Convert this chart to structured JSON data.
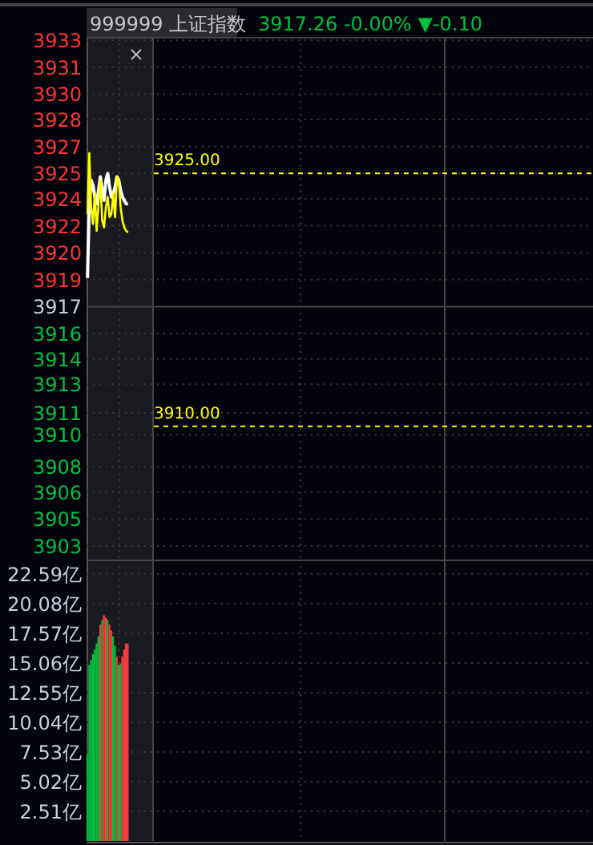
{
  "chart_data": [
    {
      "type": "line",
      "title": "999999 上证指数",
      "subtitle": "3917.26  -0.00% ▼-0.10",
      "categories": [
        null,
        null,
        null,
        null,
        null,
        null,
        null,
        null,
        null,
        null,
        null,
        null,
        null,
        null,
        null,
        null,
        null,
        null,
        null,
        null,
        null,
        null,
        null,
        null,
        null,
        null,
        null,
        null,
        null,
        null,
        null,
        null,
        null,
        null,
        null,
        null,
        null,
        null,
        null,
        null,
        null,
        null,
        null,
        null,
        null,
        null,
        null,
        null,
        null,
        null,
        null,
        null,
        null,
        null,
        null,
        null,
        null,
        null,
        null,
        null,
        null,
        null,
        null,
        null,
        null,
        null,
        null,
        null,
        null,
        null,
        null,
        null,
        null,
        null,
        null,
        null,
        null,
        null,
        null,
        null,
        null,
        null,
        null,
        null,
        null,
        null,
        null,
        null,
        null,
        null,
        null,
        null,
        null,
        null,
        null,
        null,
        null,
        null,
        null,
        null,
        null,
        null,
        null,
        null,
        null,
        null,
        null,
        null,
        null,
        null,
        null,
        null,
        null,
        null,
        null,
        null,
        null,
        null,
        null,
        null,
        null,
        null,
        null,
        null,
        null,
        null,
        null,
        null,
        null,
        null,
        null,
        null,
        null,
        null,
        null,
        null,
        null,
        null,
        null,
        null,
        null,
        null,
        null,
        null,
        null,
        null,
        null,
        null,
        null,
        null,
        null,
        null,
        null,
        null,
        null,
        null,
        null,
        null,
        null,
        null,
        null,
        null,
        null,
        null,
        null,
        null,
        null,
        null,
        null,
        null,
        null,
        null,
        null,
        null,
        null,
        null,
        null,
        null,
        null,
        null,
        null,
        null,
        null,
        null,
        null,
        null,
        null,
        null,
        null,
        null,
        null,
        null,
        null,
        null,
        null,
        null,
        null,
        null,
        null,
        null,
        null,
        null,
        null,
        null,
        null,
        null,
        null,
        null,
        null,
        null,
        null,
        null,
        null,
        null,
        null,
        null,
        null,
        null,
        null,
        null,
        null,
        null,
        null,
        null,
        null,
        null,
        null,
        null,
        null,
        null,
        null,
        null,
        null,
        null,
        null,
        null,
        null,
        null,
        null,
        null,
        null,
        null,
        null,
        null,
        null,
        null,
        null,
        null,
        null,
        null,
        null,
        null,
        null,
        null,
        null,
        null,
        null,
        null,
        null,
        null,
        null,
        null,
        null,
        null,
        null,
        null,
        null,
        null,
        null,
        null,
        null,
        null,
        null,
        null,
        null
      ],
      "series": [
        {
          "color": "#ffffff",
          "values": [
            3918.8,
            3923.2,
            3924.6,
            3924.3,
            3923.6,
            3923.2,
            3924.0,
            3924.8,
            3924.0,
            3923.4,
            3924.6,
            3925.0,
            3924.2,
            3923.6,
            3923.8,
            3924.2,
            3924.8,
            3924.6,
            3924.0,
            3923.6,
            3923.4,
            3923.2,
            3923.2,
            null,
            null,
            null,
            null,
            null,
            null,
            null,
            null,
            null,
            null,
            null,
            null,
            null,
            null,
            null,
            null,
            null,
            null,
            null,
            null,
            null,
            null,
            null,
            null,
            null,
            null,
            null,
            null,
            null,
            null,
            null,
            null,
            null,
            null,
            null,
            null,
            null,
            null,
            null,
            null,
            null,
            null,
            null,
            null,
            null,
            null,
            null,
            null,
            null,
            null,
            null,
            null,
            null,
            null,
            null,
            null,
            null,
            null,
            null,
            null,
            null,
            null,
            null,
            null,
            null,
            null,
            null,
            null,
            null,
            null,
            null,
            null,
            null,
            null,
            null,
            null,
            null,
            null,
            null,
            null,
            null,
            null,
            null,
            null,
            null,
            null,
            null,
            null,
            null,
            null,
            null,
            null,
            null,
            null,
            null,
            null,
            null,
            null,
            null,
            null,
            null,
            null,
            null,
            null,
            null,
            null,
            null,
            null,
            null,
            null,
            null,
            null,
            null,
            null,
            null,
            null,
            null,
            null,
            null,
            null,
            null,
            null,
            null,
            null,
            null,
            null,
            null,
            null,
            null,
            null,
            null,
            null,
            null,
            null,
            null,
            null,
            null,
            null,
            null,
            null,
            null,
            null,
            null,
            null,
            null,
            null,
            null,
            null,
            null,
            null,
            null,
            null,
            null,
            null,
            null,
            null,
            null,
            null,
            null,
            null,
            null,
            null,
            null,
            null,
            null,
            null,
            null,
            null,
            null,
            null,
            null,
            null,
            null,
            null,
            null,
            null,
            null,
            null,
            null,
            null,
            null,
            null,
            null,
            null,
            null,
            null,
            null,
            null,
            null,
            null,
            null,
            null,
            null,
            null,
            null,
            null,
            null,
            null,
            null,
            null,
            null,
            null,
            null,
            null,
            null,
            null,
            null,
            null,
            null,
            null,
            null,
            null,
            null,
            null,
            null,
            null,
            null,
            null,
            null,
            null,
            null,
            null,
            null,
            null,
            null,
            null,
            null,
            null,
            null,
            null,
            null,
            null,
            null,
            null,
            null,
            null,
            null,
            null,
            null,
            null,
            null,
            null,
            null,
            null,
            null,
            null,
            null,
            null,
            null,
            null,
            null,
            null
          ]
        },
        {
          "color": "#ffff00",
          "values": [
            3922.6,
            3926.2,
            3923.0,
            3922.0,
            3923.8,
            3921.6,
            3923.2,
            3924.6,
            3922.2,
            3921.8,
            3923.0,
            3923.6,
            3922.4,
            3922.6,
            3923.8,
            3922.4,
            3924.8,
            3924.6,
            3923.0,
            3922.2,
            3921.8,
            3921.6,
            3921.5,
            null,
            null,
            null,
            null,
            null,
            null,
            null,
            null,
            null,
            null,
            null,
            null,
            null,
            null,
            null,
            null,
            null,
            null,
            null,
            null,
            null,
            null,
            null,
            null,
            null,
            null,
            null,
            null,
            null,
            null,
            null,
            null,
            null,
            null,
            null,
            null,
            null,
            null,
            null,
            null,
            null,
            null,
            null,
            null,
            null,
            null,
            null,
            null,
            null,
            null,
            null,
            null,
            null,
            null,
            null,
            null,
            null,
            null,
            null,
            null,
            null,
            null,
            null,
            null,
            null,
            null,
            null,
            null,
            null,
            null,
            null,
            null,
            null,
            null,
            null,
            null,
            null,
            null,
            null,
            null,
            null,
            null,
            null,
            null,
            null,
            null,
            null,
            null,
            null,
            null,
            null,
            null,
            null,
            null,
            null,
            null,
            null,
            null,
            null,
            null,
            null,
            null,
            null,
            null,
            null,
            null,
            null,
            null,
            null,
            null,
            null,
            null,
            null,
            null,
            null,
            null,
            null,
            null,
            null,
            null,
            null,
            null,
            null,
            null,
            null,
            null,
            null,
            null,
            null,
            null,
            null,
            null,
            null,
            null,
            null,
            null,
            null,
            null,
            null,
            null,
            null,
            null,
            null,
            null,
            null,
            null,
            null,
            null,
            null,
            null,
            null,
            null,
            null,
            null,
            null,
            null,
            null,
            null,
            null,
            null,
            null,
            null,
            null,
            null,
            null,
            null,
            null,
            null,
            null,
            null,
            null,
            null,
            null,
            null,
            null,
            null,
            null,
            null,
            null,
            null,
            null,
            null,
            null,
            null,
            null,
            null,
            null,
            null,
            null,
            null,
            null,
            null,
            null,
            null,
            null,
            null,
            null,
            null,
            null,
            null,
            null,
            null,
            null,
            null,
            null,
            null,
            null,
            null,
            null,
            null,
            null,
            null,
            null,
            null,
            null,
            null,
            null,
            null,
            null,
            null,
            null,
            null,
            null,
            null,
            null,
            null,
            null,
            null,
            null,
            null,
            null,
            null,
            null,
            null,
            null,
            null,
            null,
            null,
            null,
            null,
            null,
            null,
            null,
            null,
            null,
            null,
            null,
            null,
            null,
            null,
            null,
            null
          ]
        }
      ],
      "ylim": [
        3902.0,
        3933.1
      ],
      "yticks": [
        {
          "value": 3932.9,
          "label": "3933"
        },
        {
          "value": 3931.3,
          "label": "3931"
        },
        {
          "value": 3929.7,
          "label": "3930"
        },
        {
          "value": 3928.2,
          "label": "3928"
        },
        {
          "value": 3926.6,
          "label": "3927"
        },
        {
          "value": 3925.0,
          "label": "3925"
        },
        {
          "value": 3923.5,
          "label": "3924"
        },
        {
          "value": 3921.9,
          "label": "3922"
        },
        {
          "value": 3920.3,
          "label": "3920"
        },
        {
          "value": 3918.7,
          "label": "3919"
        },
        {
          "value": 3917.1,
          "label": "3917"
        },
        {
          "value": 3915.5,
          "label": "3916"
        },
        {
          "value": 3914.0,
          "label": "3914"
        },
        {
          "value": 3912.5,
          "label": "3913"
        },
        {
          "value": 3910.8,
          "label": "3911"
        },
        {
          "value": 3909.5,
          "label": "3910"
        },
        {
          "value": 3907.6,
          "label": "3908"
        },
        {
          "value": 3906.1,
          "label": "3906"
        },
        {
          "value": 3904.5,
          "label": "3905"
        },
        {
          "value": 3902.9,
          "label": "3903"
        }
      ],
      "ref_lines": [
        {
          "axis": "y",
          "value": 3925.0,
          "label": "3925.00",
          "color": "#ffff00",
          "line_style": "dashed"
        },
        {
          "axis": "y",
          "value": 3910.0,
          "label": "3910.00",
          "color": "#ffff00",
          "line_style": "dashed"
        }
      ],
      "grid": "y",
      "line_style": "solid"
    },
    {
      "type": "bar",
      "categories": [
        null,
        null,
        null,
        null,
        null,
        null,
        null,
        null,
        null,
        null,
        null,
        null,
        null,
        null,
        null,
        null,
        null,
        null,
        null,
        null,
        null,
        null,
        null,
        null,
        null,
        null,
        null,
        null,
        null,
        null,
        null,
        null,
        null,
        null,
        null,
        null,
        null,
        null,
        null,
        null,
        null,
        null,
        null,
        null,
        null,
        null,
        null,
        null,
        null,
        null,
        null,
        null,
        null,
        null,
        null,
        null,
        null,
        null,
        null,
        null,
        null,
        null,
        null,
        null,
        null,
        null,
        null,
        null,
        null,
        null,
        null,
        null,
        null,
        null,
        null,
        null,
        null,
        null,
        null,
        null,
        null,
        null,
        null,
        null,
        null,
        null,
        null,
        null,
        null,
        null,
        null,
        null,
        null,
        null,
        null,
        null,
        null,
        null,
        null,
        null,
        null,
        null,
        null,
        null,
        null,
        null,
        null,
        null,
        null,
        null,
        null,
        null,
        null,
        null,
        null,
        null,
        null,
        null,
        null,
        null,
        null,
        null,
        null,
        null,
        null,
        null,
        null,
        null,
        null,
        null,
        null,
        null,
        null,
        null,
        null,
        null,
        null,
        null,
        null,
        null,
        null,
        null,
        null,
        null,
        null,
        null,
        null,
        null,
        null,
        null,
        null,
        null,
        null,
        null,
        null,
        null,
        null,
        null,
        null,
        null,
        null,
        null,
        null,
        null,
        null,
        null,
        null,
        null,
        null,
        null,
        null,
        null,
        null,
        null,
        null,
        null,
        null,
        null,
        null,
        null,
        null,
        null,
        null,
        null,
        null,
        null,
        null,
        null,
        null,
        null,
        null,
        null,
        null,
        null,
        null,
        null,
        null,
        null,
        null,
        null,
        null,
        null,
        null,
        null,
        null,
        null,
        null,
        null,
        null,
        null,
        null,
        null,
        null,
        null,
        null,
        null,
        null,
        null,
        null,
        null,
        null,
        null,
        null,
        null,
        null,
        null,
        null,
        null,
        null,
        null,
        null,
        null,
        null,
        null,
        null,
        null,
        null,
        null,
        null,
        null,
        null,
        null,
        null,
        null,
        null,
        null,
        null,
        null,
        null,
        null,
        null,
        null,
        null,
        null,
        null,
        null,
        null,
        null,
        null,
        null,
        null,
        null,
        null,
        null,
        null,
        null,
        null,
        null,
        null,
        null,
        null,
        null,
        null,
        null,
        null,
        null,
        null
      ],
      "values": [
        7.3,
        14.9,
        15.3,
        15.8,
        16.2,
        16.7,
        17.3,
        18.3,
        18.7,
        19.1,
        18.9,
        18.7,
        18.3,
        17.8,
        17.3,
        16.5,
        15.6,
        14.9,
        15.0,
        15.6,
        16.2,
        16.7,
        16.7,
        null,
        null,
        null,
        null,
        null,
        null,
        null,
        null,
        null,
        null,
        null,
        null,
        null,
        null,
        null,
        null,
        null,
        null,
        null,
        null,
        null,
        null,
        null,
        null,
        null,
        null,
        null,
        null,
        null,
        null,
        null,
        null,
        null,
        null,
        null,
        null,
        null,
        null,
        null,
        null,
        null,
        null,
        null,
        null,
        null,
        null,
        null,
        null,
        null,
        null,
        null,
        null,
        null,
        null,
        null,
        null,
        null,
        null,
        null,
        null,
        null,
        null,
        null,
        null,
        null,
        null,
        null,
        null,
        null,
        null,
        null,
        null,
        null,
        null,
        null,
        null,
        null,
        null,
        null,
        null,
        null,
        null,
        null,
        null,
        null,
        null,
        null,
        null,
        null,
        null,
        null,
        null,
        null,
        null,
        null,
        null,
        null,
        null,
        null,
        null,
        null,
        null,
        null,
        null,
        null,
        null,
        null,
        null,
        null,
        null,
        null,
        null,
        null,
        null,
        null,
        null,
        null,
        null,
        null,
        null,
        null,
        null,
        null,
        null,
        null,
        null,
        null,
        null,
        null,
        null,
        null,
        null,
        null,
        null,
        null,
        null,
        null,
        null,
        null,
        null,
        null,
        null,
        null,
        null,
        null,
        null,
        null,
        null,
        null,
        null,
        null,
        null,
        null,
        null,
        null,
        null,
        null,
        null,
        null,
        null,
        null,
        null,
        null,
        null,
        null,
        null,
        null,
        null,
        null,
        null,
        null,
        null,
        null,
        null,
        null,
        null,
        null,
        null,
        null,
        null,
        null,
        null,
        null,
        null,
        null,
        null,
        null,
        null,
        null,
        null,
        null,
        null,
        null,
        null,
        null,
        null,
        null,
        null,
        null,
        null,
        null,
        null,
        null,
        null,
        null,
        null,
        null,
        null,
        null,
        null,
        null,
        null,
        null,
        null,
        null,
        null,
        null,
        null,
        null,
        null,
        null,
        null,
        null,
        null,
        null,
        null,
        null,
        null,
        null,
        null,
        null,
        null,
        null,
        null,
        null,
        null,
        null,
        null,
        null,
        null,
        null,
        null,
        null,
        null,
        null,
        null,
        null,
        null,
        null,
        null,
        null,
        null,
        null,
        null
      ],
      "colors": [
        "#00c040",
        "#00c040",
        "#00c040",
        "#00c040",
        "#00c040",
        "#00c040",
        "#00c040",
        "#ff3b3b",
        "#00c040",
        "#ff3b3b",
        "#ff3b3b",
        "#00c040",
        "#ff3b3b",
        "#ff3b3b",
        "#00c040",
        "#00c040",
        "#ff3b3b",
        "#00c040",
        "#00c040",
        "#ff3b3b",
        "#ff3b3b",
        "#ff3b3b",
        "#ff3b3b",
        null,
        null,
        null,
        null,
        null,
        null,
        null,
        null,
        null,
        null,
        null,
        null,
        null,
        null,
        null,
        null,
        null,
        null,
        null,
        null,
        null,
        null,
        null,
        null,
        null,
        null,
        null,
        null,
        null,
        null,
        null,
        null,
        null,
        null,
        null,
        null,
        null,
        null,
        null,
        null,
        null,
        null,
        null,
        null,
        null,
        null,
        null,
        null,
        null,
        null,
        null,
        null,
        null,
        null,
        null,
        null,
        null,
        null,
        null,
        null,
        null,
        null,
        null,
        null,
        null,
        null,
        null,
        null,
        null,
        null,
        null,
        null,
        null,
        null,
        null,
        null,
        null,
        null,
        null,
        null,
        null,
        null,
        null,
        null,
        null,
        null,
        null,
        null,
        null,
        null,
        null,
        null,
        null,
        null,
        null,
        null,
        null,
        null,
        null,
        null,
        null,
        null,
        null,
        null,
        null,
        null,
        null,
        null,
        null,
        null,
        null,
        null,
        null,
        null,
        null,
        null,
        null,
        null,
        null,
        null,
        null,
        null,
        null,
        null,
        null,
        null,
        null,
        null,
        null,
        null,
        null,
        null,
        null,
        null,
        null,
        null,
        null,
        null,
        null,
        null,
        null,
        null,
        null,
        null,
        null,
        null,
        null,
        null,
        null,
        null,
        null,
        null,
        null,
        null,
        null,
        null,
        null,
        null,
        null,
        null,
        null,
        null,
        null,
        null,
        null,
        null,
        null,
        null,
        null,
        null,
        null,
        null,
        null,
        null,
        null,
        null,
        null,
        null,
        null,
        null,
        null,
        null,
        null,
        null,
        null,
        null,
        null,
        null,
        null,
        null,
        null,
        null,
        null,
        null,
        null,
        null,
        null,
        null,
        null,
        null,
        null,
        null,
        null,
        null,
        null,
        null,
        null,
        null,
        null,
        null,
        null,
        null,
        null,
        null,
        null,
        null,
        null,
        null,
        null,
        null,
        null,
        null,
        null,
        null,
        null,
        null,
        null,
        null,
        null,
        null,
        null,
        null,
        null,
        null,
        null,
        null,
        null,
        null,
        null,
        null,
        null,
        null,
        null,
        null,
        null,
        null,
        null,
        null,
        null,
        null,
        null,
        null,
        null,
        null
      ],
      "ylim": [
        0,
        23.8
      ],
      "yticks": [
        {
          "value": 2.51,
          "label": "2.51亿"
        },
        {
          "value": 5.02,
          "label": "5.02亿"
        },
        {
          "value": 7.53,
          "label": "7.53亿"
        },
        {
          "value": 10.04,
          "label": "10.04亿"
        },
        {
          "value": 12.55,
          "label": "12.55亿"
        },
        {
          "value": 15.06,
          "label": "15.06亿"
        },
        {
          "value": 17.57,
          "label": "17.57亿"
        },
        {
          "value": 20.08,
          "label": "20.08亿"
        },
        {
          "value": 22.59,
          "label": "22.59亿"
        }
      ],
      "grid": "y"
    }
  ]
}
